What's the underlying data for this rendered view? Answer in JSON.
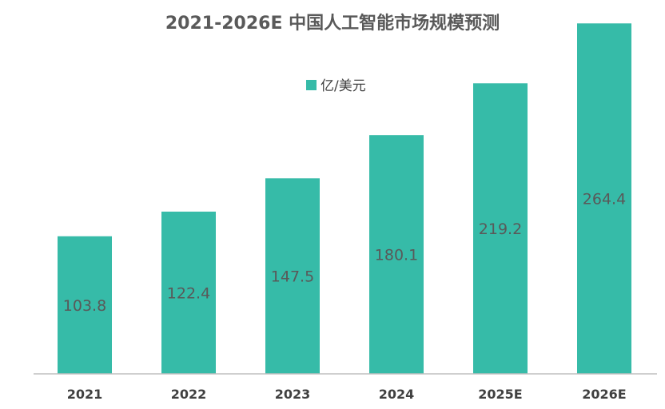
{
  "chart_data": {
    "type": "bar",
    "title": "2021-2026E 中国人工智能市场规模预测",
    "categories": [
      "2021",
      "2022",
      "2023",
      "2024",
      "2025E",
      "2026E"
    ],
    "series": [
      {
        "name": "亿/美元",
        "values": [
          103.8,
          122.4,
          147.5,
          180.1,
          219.2,
          264.4
        ]
      }
    ],
    "data_labels": [
      "103.8",
      "122.4",
      "147.5",
      "180.1",
      "219.2",
      "264.4"
    ],
    "xlabel": "",
    "ylabel": "",
    "ylim": [
      0,
      270
    ],
    "grid": false,
    "legend_position": "top",
    "bar_color": "#36BBA8",
    "axis_color": "#BFBFBF"
  }
}
